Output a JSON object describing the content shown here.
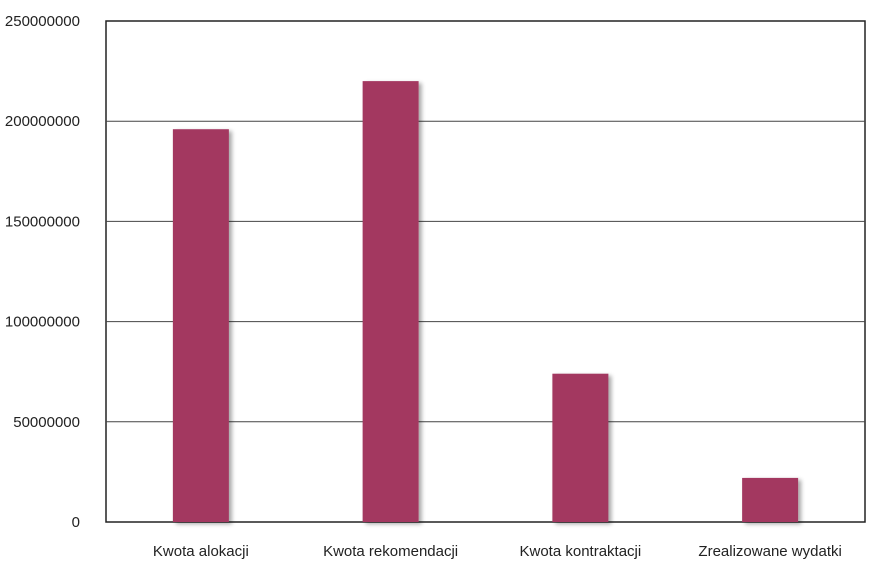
{
  "chart_data": {
    "type": "bar",
    "title": "",
    "xlabel": "",
    "ylabel": "",
    "categories": [
      "Kwota alokacji",
      "Kwota rekomendacji",
      "Kwota kontraktacji",
      "Zrealizowane wydatki"
    ],
    "values": [
      196000000,
      220000000,
      74000000,
      22000000
    ],
    "ylim": [
      0,
      250000000
    ],
    "yticks": [
      0,
      50000000,
      100000000,
      150000000,
      200000000,
      250000000
    ],
    "ytick_labels": [
      "0",
      "50000000",
      "100000000",
      "150000000",
      "200000000",
      "250000000"
    ],
    "grid": true,
    "legend": "none",
    "colors": {
      "bar": "#a33861",
      "grid": "#444444",
      "axis": "#222222",
      "background": "#ffffff"
    }
  }
}
